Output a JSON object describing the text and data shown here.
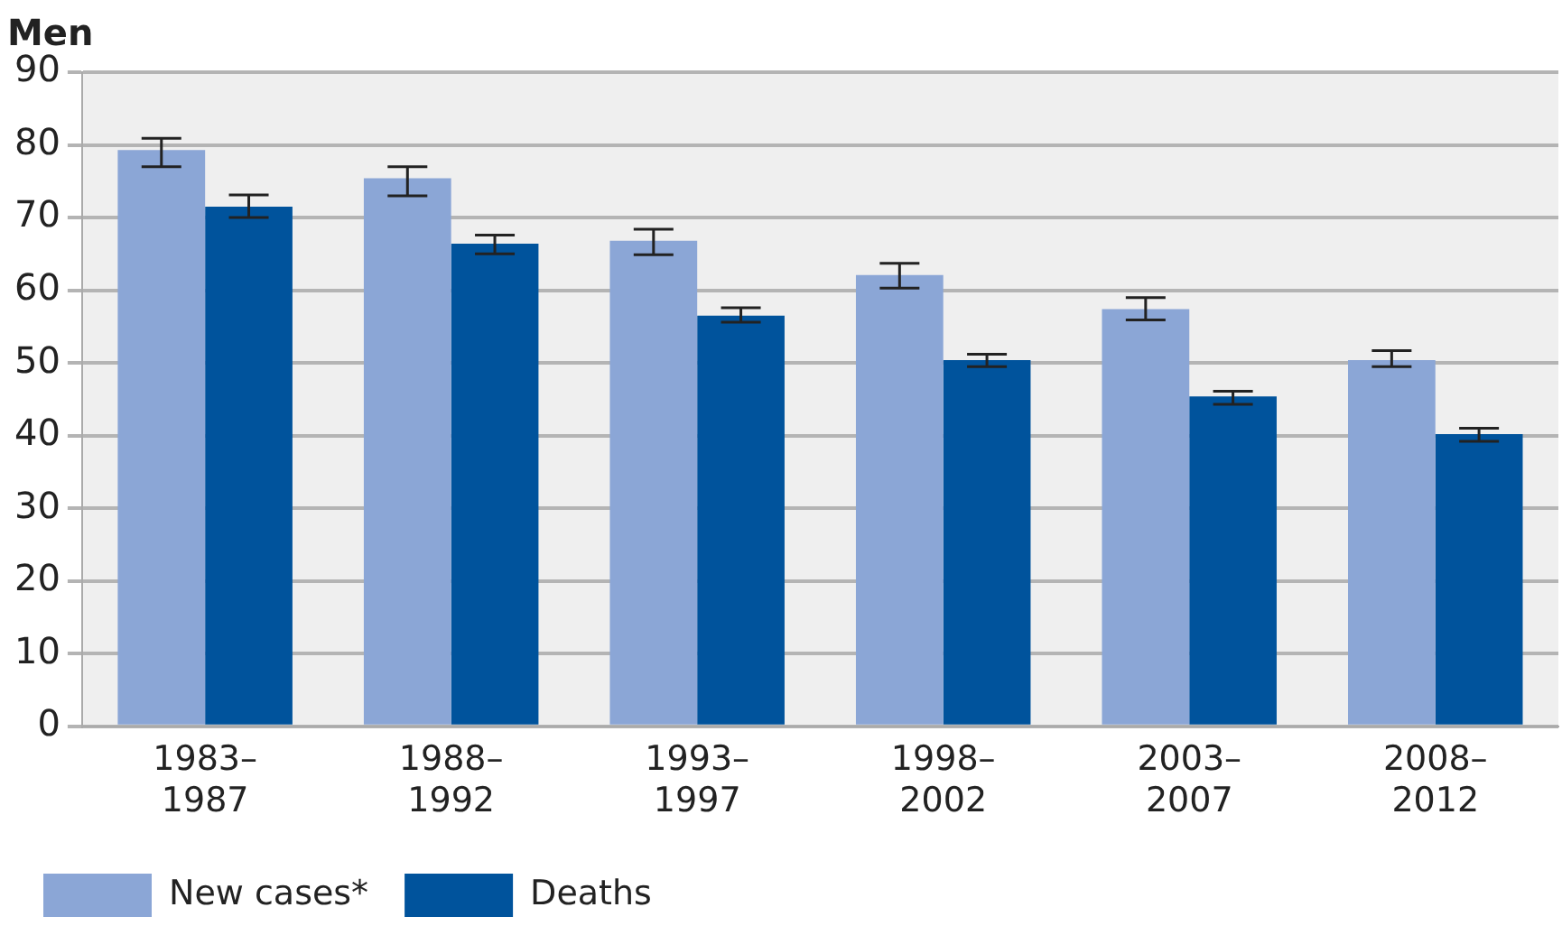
{
  "chart_data": {
    "type": "bar",
    "title": "Men",
    "categories": [
      "1983–1987",
      "1988–1992",
      "1993–1997",
      "1998–2002",
      "2003–2007",
      "2008–2012"
    ],
    "series": [
      {
        "name": "New cases*",
        "color": "#8ba6d6",
        "values": [
          79.3,
          75.4,
          66.8,
          62.1,
          57.4,
          50.4
        ],
        "errors": [
          [
            77.0,
            80.9
          ],
          [
            73.0,
            77.0
          ],
          [
            64.9,
            68.4
          ],
          [
            60.3,
            63.7
          ],
          [
            55.9,
            59.0
          ],
          [
            49.5,
            51.7
          ]
        ]
      },
      {
        "name": "Deaths",
        "color": "#00539c",
        "values": [
          71.5,
          66.4,
          56.5,
          50.4,
          45.4,
          40.2
        ],
        "errors": [
          [
            70.0,
            73.1
          ],
          [
            65.0,
            67.6
          ],
          [
            55.6,
            57.6
          ],
          [
            49.5,
            51.2
          ],
          [
            44.3,
            46.1
          ],
          [
            39.2,
            41.0
          ]
        ]
      }
    ],
    "ylim": [
      0,
      90
    ],
    "yticks": [
      0,
      10,
      20,
      30,
      40,
      50,
      60,
      70,
      80,
      90
    ],
    "grid": "y",
    "legend": "bottom left"
  }
}
